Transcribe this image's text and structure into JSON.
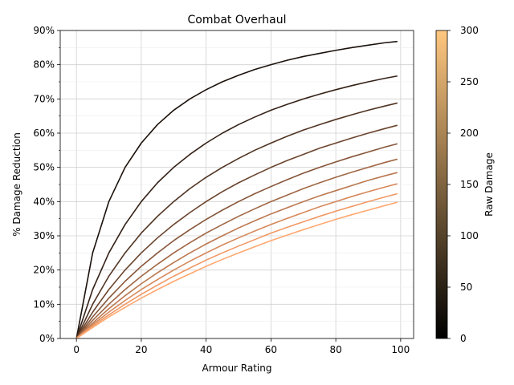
{
  "chart_data": {
    "type": "line",
    "title": "Combat Overhaul",
    "xlabel": "Armour Rating",
    "ylabel": "% Damage Reduction",
    "xlim": [
      -5,
      104
    ],
    "ylim": [
      0,
      0.9
    ],
    "x_ticks": [
      0,
      20,
      40,
      60,
      80,
      100
    ],
    "x_tick_labels": [
      "0",
      "20",
      "40",
      "60",
      "80",
      "100"
    ],
    "y_ticks": [
      0,
      0.1,
      0.2,
      0.3,
      0.4,
      0.5,
      0.6,
      0.7,
      0.8,
      0.9
    ],
    "y_tick_labels": [
      "0%",
      "10%",
      "20%",
      "30%",
      "40%",
      "50%",
      "60%",
      "70%",
      "80%",
      "90%"
    ],
    "y_minor_ticks": [
      0.05,
      0.15,
      0.25,
      0.35,
      0.45,
      0.55,
      0.65,
      0.75,
      0.85
    ],
    "grid": true,
    "x_samples": [
      0,
      5,
      10,
      15,
      20,
      25,
      30,
      35,
      40,
      45,
      50,
      55,
      60,
      65,
      70,
      75,
      80,
      85,
      90,
      95,
      99
    ],
    "series": [
      {
        "damage": 30,
        "color": "#1b110b",
        "values": [
          0,
          0.25,
          0.4,
          0.5,
          0.571,
          0.625,
          0.667,
          0.7,
          0.727,
          0.75,
          0.769,
          0.786,
          0.8,
          0.813,
          0.824,
          0.833,
          0.842,
          0.85,
          0.857,
          0.864,
          0.868
        ]
      },
      {
        "damage": 60,
        "color": "#352217",
        "values": [
          0,
          0.143,
          0.25,
          0.333,
          0.4,
          0.455,
          0.5,
          0.538,
          0.571,
          0.6,
          0.625,
          0.647,
          0.667,
          0.684,
          0.7,
          0.714,
          0.727,
          0.739,
          0.75,
          0.76,
          0.767
        ]
      },
      {
        "damage": 90,
        "color": "#503322",
        "values": [
          0,
          0.1,
          0.182,
          0.25,
          0.308,
          0.357,
          0.4,
          0.438,
          0.471,
          0.5,
          0.526,
          0.55,
          0.571,
          0.591,
          0.609,
          0.625,
          0.64,
          0.654,
          0.667,
          0.679,
          0.688
        ]
      },
      {
        "damage": 120,
        "color": "#6b442d",
        "values": [
          0,
          0.077,
          0.143,
          0.2,
          0.25,
          0.294,
          0.333,
          0.368,
          0.4,
          0.429,
          0.455,
          0.478,
          0.5,
          0.52,
          0.538,
          0.556,
          0.571,
          0.586,
          0.6,
          0.613,
          0.623
        ]
      },
      {
        "damage": 150,
        "color": "#865539",
        "values": [
          0,
          0.063,
          0.118,
          0.167,
          0.211,
          0.25,
          0.286,
          0.318,
          0.348,
          0.375,
          0.4,
          0.423,
          0.444,
          0.464,
          0.483,
          0.5,
          0.516,
          0.531,
          0.545,
          0.559,
          0.569
        ]
      },
      {
        "damage": 180,
        "color": "#a06644",
        "values": [
          0,
          0.053,
          0.1,
          0.143,
          0.182,
          0.217,
          0.25,
          0.28,
          0.308,
          0.333,
          0.357,
          0.379,
          0.4,
          0.419,
          0.438,
          0.455,
          0.471,
          0.486,
          0.5,
          0.514,
          0.524
        ]
      },
      {
        "damage": 210,
        "color": "#bb774f",
        "values": [
          0,
          0.045,
          0.087,
          0.125,
          0.16,
          0.192,
          0.222,
          0.25,
          0.276,
          0.3,
          0.323,
          0.344,
          0.364,
          0.382,
          0.4,
          0.417,
          0.432,
          0.447,
          0.462,
          0.475,
          0.485
        ]
      },
      {
        "damage": 240,
        "color": "#d6885a",
        "values": [
          0,
          0.04,
          0.077,
          0.111,
          0.143,
          0.172,
          0.2,
          0.226,
          0.25,
          0.273,
          0.294,
          0.314,
          0.333,
          0.351,
          0.368,
          0.385,
          0.4,
          0.415,
          0.429,
          0.442,
          0.452
        ]
      },
      {
        "damage": 270,
        "color": "#f09965",
        "values": [
          0,
          0.036,
          0.069,
          0.1,
          0.129,
          0.156,
          0.182,
          0.206,
          0.229,
          0.25,
          0.27,
          0.289,
          0.308,
          0.325,
          0.341,
          0.357,
          0.372,
          0.386,
          0.4,
          0.413,
          0.423
        ]
      },
      {
        "damage": 300,
        "color": "#ffa870",
        "values": [
          0,
          0.032,
          0.063,
          0.091,
          0.118,
          0.143,
          0.167,
          0.189,
          0.211,
          0.231,
          0.25,
          0.268,
          0.286,
          0.302,
          0.318,
          0.333,
          0.348,
          0.362,
          0.375,
          0.388,
          0.398
        ]
      }
    ],
    "colorbar": {
      "label": "Raw Damage",
      "range": [
        0,
        300
      ],
      "ticks": [
        0,
        50,
        100,
        150,
        200,
        250,
        300
      ],
      "tick_labels": [
        "0",
        "50",
        "100",
        "150",
        "200",
        "250",
        "300"
      ],
      "colormap": "copper",
      "stops": [
        "#000000",
        "#ffc77f"
      ]
    }
  }
}
